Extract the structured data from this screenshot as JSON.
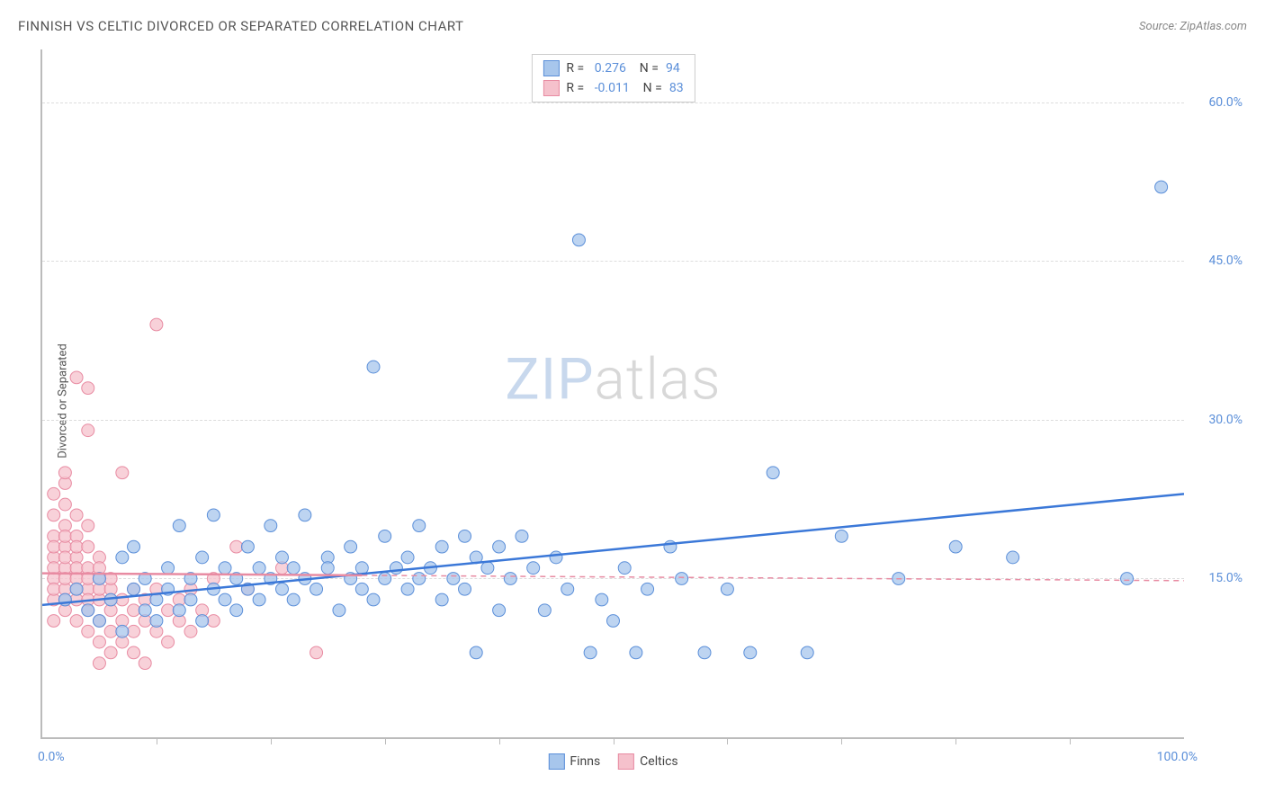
{
  "header": {
    "title": "FINNISH VS CELTIC DIVORCED OR SEPARATED CORRELATION CHART",
    "source": "Source: ZipAtlas.com"
  },
  "chart": {
    "type": "scatter",
    "y_axis_label": "Divorced or Separated",
    "x_range": [
      0,
      100
    ],
    "y_range": [
      0,
      65
    ],
    "y_ticks": [
      {
        "value": 15,
        "label": "15.0%"
      },
      {
        "value": 30,
        "label": "30.0%"
      },
      {
        "value": 45,
        "label": "45.0%"
      },
      {
        "value": 60,
        "label": "60.0%"
      }
    ],
    "x_ticks": [
      10,
      20,
      30,
      40,
      50,
      60,
      70,
      80,
      90
    ],
    "x_tick_labels": [
      {
        "value": 0,
        "label": "0.0%"
      },
      {
        "value": 100,
        "label": "100.0%"
      }
    ],
    "grid_color": "#dddddd",
    "axis_color": "#bbbbbb",
    "background_color": "#ffffff",
    "marker_radius": 7,
    "marker_stroke_width": 1,
    "trendline_width_solid": 2.5,
    "trendline_width_dashed": 1.5,
    "series": [
      {
        "name": "Finns",
        "fill_color": "#a7c6ec",
        "stroke_color": "#5b8fd9",
        "line_color": "#3b78d8",
        "r_value": "0.276",
        "n_value": "94",
        "trendline": {
          "x1": 0,
          "y1": 12.5,
          "x2": 100,
          "y2": 23,
          "dashed_after_x": null
        },
        "points": [
          [
            2,
            13
          ],
          [
            3,
            14
          ],
          [
            4,
            12
          ],
          [
            5,
            15
          ],
          [
            5,
            11
          ],
          [
            6,
            13
          ],
          [
            7,
            17
          ],
          [
            7,
            10
          ],
          [
            8,
            14
          ],
          [
            8,
            18
          ],
          [
            9,
            12
          ],
          [
            9,
            15
          ],
          [
            10,
            13
          ],
          [
            10,
            11
          ],
          [
            11,
            16
          ],
          [
            11,
            14
          ],
          [
            12,
            12
          ],
          [
            12,
            20
          ],
          [
            13,
            15
          ],
          [
            13,
            13
          ],
          [
            14,
            11
          ],
          [
            14,
            17
          ],
          [
            15,
            14
          ],
          [
            15,
            21
          ],
          [
            16,
            13
          ],
          [
            16,
            16
          ],
          [
            17,
            15
          ],
          [
            17,
            12
          ],
          [
            18,
            18
          ],
          [
            18,
            14
          ],
          [
            19,
            16
          ],
          [
            19,
            13
          ],
          [
            20,
            15
          ],
          [
            20,
            20
          ],
          [
            21,
            14
          ],
          [
            21,
            17
          ],
          [
            22,
            16
          ],
          [
            22,
            13
          ],
          [
            23,
            21
          ],
          [
            23,
            15
          ],
          [
            24,
            14
          ],
          [
            25,
            17
          ],
          [
            25,
            16
          ],
          [
            26,
            12
          ],
          [
            27,
            15
          ],
          [
            27,
            18
          ],
          [
            28,
            14
          ],
          [
            28,
            16
          ],
          [
            29,
            13
          ],
          [
            29,
            35
          ],
          [
            30,
            15
          ],
          [
            30,
            19
          ],
          [
            31,
            16
          ],
          [
            32,
            14
          ],
          [
            32,
            17
          ],
          [
            33,
            15
          ],
          [
            33,
            20
          ],
          [
            34,
            16
          ],
          [
            35,
            18
          ],
          [
            35,
            13
          ],
          [
            36,
            15
          ],
          [
            37,
            19
          ],
          [
            37,
            14
          ],
          [
            38,
            8
          ],
          [
            38,
            17
          ],
          [
            39,
            16
          ],
          [
            40,
            18
          ],
          [
            40,
            12
          ],
          [
            41,
            15
          ],
          [
            42,
            19
          ],
          [
            43,
            16
          ],
          [
            44,
            12
          ],
          [
            45,
            17
          ],
          [
            46,
            14
          ],
          [
            47,
            47
          ],
          [
            48,
            8
          ],
          [
            49,
            13
          ],
          [
            50,
            11
          ],
          [
            51,
            16
          ],
          [
            52,
            8
          ],
          [
            53,
            14
          ],
          [
            55,
            18
          ],
          [
            56,
            15
          ],
          [
            58,
            8
          ],
          [
            60,
            14
          ],
          [
            62,
            8
          ],
          [
            64,
            25
          ],
          [
            67,
            8
          ],
          [
            70,
            19
          ],
          [
            75,
            15
          ],
          [
            80,
            18
          ],
          [
            85,
            17
          ],
          [
            98,
            52
          ],
          [
            95,
            15
          ]
        ]
      },
      {
        "name": "Celtics",
        "fill_color": "#f5c1cc",
        "stroke_color": "#e88ba2",
        "line_color": "#e88ba2",
        "r_value": "-0.011",
        "n_value": "83",
        "trendline": {
          "x1": 0,
          "y1": 15.5,
          "x2": 100,
          "y2": 14.8,
          "dashed_after_x": 28
        },
        "points": [
          [
            1,
            13
          ],
          [
            1,
            15
          ],
          [
            1,
            17
          ],
          [
            1,
            19
          ],
          [
            1,
            11
          ],
          [
            1,
            21
          ],
          [
            1,
            23
          ],
          [
            1,
            14
          ],
          [
            1,
            16
          ],
          [
            1,
            18
          ],
          [
            2,
            12
          ],
          [
            2,
            14
          ],
          [
            2,
            16
          ],
          [
            2,
            18
          ],
          [
            2,
            20
          ],
          [
            2,
            22
          ],
          [
            2,
            24
          ],
          [
            2,
            13
          ],
          [
            2,
            15
          ],
          [
            2,
            17
          ],
          [
            2,
            19
          ],
          [
            2,
            25
          ],
          [
            3,
            11
          ],
          [
            3,
            13
          ],
          [
            3,
            15
          ],
          [
            3,
            17
          ],
          [
            3,
            19
          ],
          [
            3,
            21
          ],
          [
            3,
            14
          ],
          [
            3,
            16
          ],
          [
            3,
            34
          ],
          [
            3,
            18
          ],
          [
            4,
            10
          ],
          [
            4,
            12
          ],
          [
            4,
            14
          ],
          [
            4,
            16
          ],
          [
            4,
            18
          ],
          [
            4,
            20
          ],
          [
            4,
            33
          ],
          [
            4,
            13
          ],
          [
            4,
            15
          ],
          [
            4,
            29
          ],
          [
            5,
            9
          ],
          [
            5,
            11
          ],
          [
            5,
            13
          ],
          [
            5,
            15
          ],
          [
            5,
            17
          ],
          [
            5,
            7
          ],
          [
            5,
            14
          ],
          [
            5,
            16
          ],
          [
            6,
            10
          ],
          [
            6,
            12
          ],
          [
            6,
            14
          ],
          [
            6,
            8
          ],
          [
            6,
            13
          ],
          [
            6,
            15
          ],
          [
            7,
            9
          ],
          [
            7,
            11
          ],
          [
            7,
            25
          ],
          [
            7,
            13
          ],
          [
            8,
            10
          ],
          [
            8,
            14
          ],
          [
            8,
            8
          ],
          [
            8,
            12
          ],
          [
            9,
            11
          ],
          [
            9,
            13
          ],
          [
            9,
            7
          ],
          [
            10,
            10
          ],
          [
            10,
            39
          ],
          [
            10,
            14
          ],
          [
            11,
            12
          ],
          [
            11,
            9
          ],
          [
            12,
            13
          ],
          [
            12,
            11
          ],
          [
            13,
            14
          ],
          [
            13,
            10
          ],
          [
            14,
            12
          ],
          [
            15,
            15
          ],
          [
            15,
            11
          ],
          [
            17,
            18
          ],
          [
            18,
            14
          ],
          [
            21,
            16
          ],
          [
            24,
            8
          ]
        ]
      }
    ],
    "bottom_legend": [
      {
        "label": "Finns",
        "fill": "#a7c6ec",
        "stroke": "#5b8fd9"
      },
      {
        "label": "Celtics",
        "fill": "#f5c1cc",
        "stroke": "#e88ba2"
      }
    ],
    "watermark": {
      "part1": "ZIP",
      "part2": "atlas"
    }
  }
}
